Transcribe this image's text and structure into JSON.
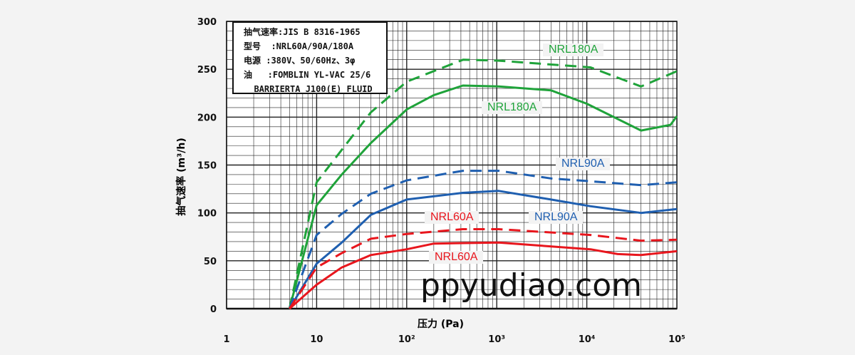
{
  "chart_data": {
    "type": "line",
    "title": "",
    "xlabel": "压力 (Pa)",
    "ylabel": "抽气速率 (m³/h)",
    "xscale": "log",
    "xlim": [
      1,
      100000
    ],
    "ylim": [
      0,
      300
    ],
    "grid": true,
    "x_ticks": [
      {
        "v": 1,
        "t": "1"
      },
      {
        "v": 10,
        "t": "10"
      },
      {
        "v": 100,
        "t": "10²"
      },
      {
        "v": 1000,
        "t": "10³"
      },
      {
        "v": 10000,
        "t": "10⁴"
      },
      {
        "v": 100000,
        "t": "10⁵"
      }
    ],
    "y_ticks": [
      0,
      50,
      100,
      150,
      200,
      250,
      300
    ],
    "info_box": [
      "抽气速率:JIS B 8316-1965",
      "型号  :NRL60A/90A/180A",
      "电源 :380V、50/60Hz、3φ",
      "油   :FOMBLIN YL-VAC 25/6",
      "  BARRIERTA J100(E) FLUID"
    ],
    "series": [
      {
        "name": "NRL180A",
        "style": "dashed",
        "color": "#1fa33a",
        "points": [
          [
            5,
            0
          ],
          [
            10,
            132
          ],
          [
            40,
            205
          ],
          [
            100,
            237
          ],
          [
            425,
            260
          ],
          [
            1050,
            259
          ],
          [
            11000,
            252
          ],
          [
            40000,
            232
          ],
          [
            100000,
            248
          ]
        ]
      },
      {
        "name": "NRL180A",
        "style": "solid",
        "color": "#1fa33a",
        "points": [
          [
            5,
            0
          ],
          [
            10,
            108
          ],
          [
            19,
            140
          ],
          [
            40,
            173
          ],
          [
            100,
            208
          ],
          [
            200,
            223
          ],
          [
            420,
            233
          ],
          [
            1050,
            232
          ],
          [
            4000,
            228
          ],
          [
            10000,
            214
          ],
          [
            40000,
            186
          ],
          [
            85000,
            192
          ],
          [
            100000,
            201
          ]
        ]
      },
      {
        "name": "NRL90A",
        "style": "dashed",
        "color": "#1f5fb0",
        "points": [
          [
            5,
            0
          ],
          [
            10,
            77
          ],
          [
            19,
            99
          ],
          [
            40,
            120
          ],
          [
            100,
            134
          ],
          [
            420,
            144
          ],
          [
            1050,
            144
          ],
          [
            4000,
            136
          ],
          [
            11000,
            133
          ],
          [
            40000,
            129
          ],
          [
            100000,
            132
          ]
        ]
      },
      {
        "name": "NRL90A",
        "style": "solid",
        "color": "#1f5fb0",
        "points": [
          [
            5,
            0
          ],
          [
            10,
            47
          ],
          [
            19,
            69
          ],
          [
            40,
            98
          ],
          [
            100,
            114
          ],
          [
            420,
            121
          ],
          [
            1050,
            123
          ],
          [
            4000,
            114
          ],
          [
            11000,
            107
          ],
          [
            40000,
            100
          ],
          [
            100000,
            104
          ]
        ]
      },
      {
        "name": "NRL60A",
        "style": "dashed",
        "color": "#e8161d",
        "points": [
          [
            5,
            0
          ],
          [
            10,
            43
          ],
          [
            19,
            58
          ],
          [
            40,
            73
          ],
          [
            100,
            78
          ],
          [
            420,
            83
          ],
          [
            1050,
            83
          ],
          [
            11000,
            77
          ],
          [
            40000,
            71
          ],
          [
            100000,
            72
          ]
        ]
      },
      {
        "name": "NRL60A",
        "style": "solid",
        "color": "#e8161d",
        "points": [
          [
            5,
            0
          ],
          [
            10,
            25
          ],
          [
            19,
            43
          ],
          [
            40,
            56
          ],
          [
            100,
            62
          ],
          [
            200,
            68
          ],
          [
            1050,
            69
          ],
          [
            11000,
            62
          ],
          [
            22000,
            57
          ],
          [
            40000,
            56
          ],
          [
            100000,
            60
          ]
        ]
      }
    ]
  },
  "watermark": "ppyudiao.com"
}
